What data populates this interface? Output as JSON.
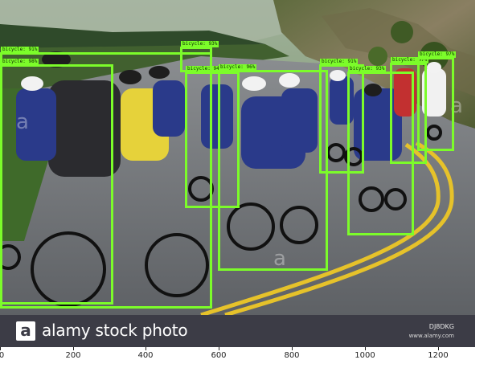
{
  "image": {
    "description_label": "cyclists-peloton-photo",
    "watermark_text": "a",
    "detections": [
      {
        "label": "bicycle: 98%"
      },
      {
        "label": "bicycle: 91%"
      },
      {
        "label": "bicycle: 93%"
      },
      {
        "label": "bicycle: 94%"
      },
      {
        "label": "bicycle: 96%"
      },
      {
        "label": "bicycle: 91%"
      },
      {
        "label": "bicycle: 93%"
      },
      {
        "label": "bicycle: 97%"
      },
      {
        "label": "bicycle: 97%"
      }
    ]
  },
  "footer": {
    "logo_letter": "a",
    "brand": "alamy stock photo",
    "image_id": "DJ8DKG",
    "site": "www.alamy.com"
  },
  "x_axis": {
    "ticks": [
      "0",
      "200",
      "400",
      "600",
      "800",
      "1000",
      "1200"
    ]
  },
  "colors": {
    "box": "#7cfc2a",
    "footer_bg": "#3c3c46"
  }
}
